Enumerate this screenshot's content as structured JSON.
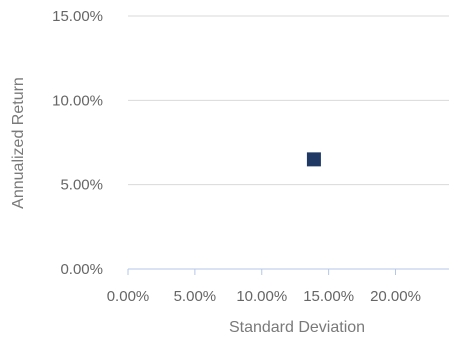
{
  "chart_data": {
    "type": "scatter",
    "xlabel": "Standard Deviation",
    "ylabel": "Annualized Return",
    "xlim": [
      0,
      0.24
    ],
    "ylim": [
      0,
      0.15
    ],
    "x_ticks": [
      0,
      0.05,
      0.1,
      0.15,
      0.2
    ],
    "x_tick_labels": [
      "0.00%",
      "5.00%",
      "10.00%",
      "15.00%",
      "20.00%"
    ],
    "y_ticks": [
      0,
      0.05,
      0.1,
      0.15
    ],
    "y_tick_labels": [
      "0.00%",
      "5.00%",
      "10.00%",
      "15.00%"
    ],
    "grid": "horizontal",
    "series": [
      {
        "marker": "square",
        "color": "#1f3864",
        "points": [
          {
            "x": 0.139,
            "y": 0.065
          }
        ]
      }
    ]
  }
}
